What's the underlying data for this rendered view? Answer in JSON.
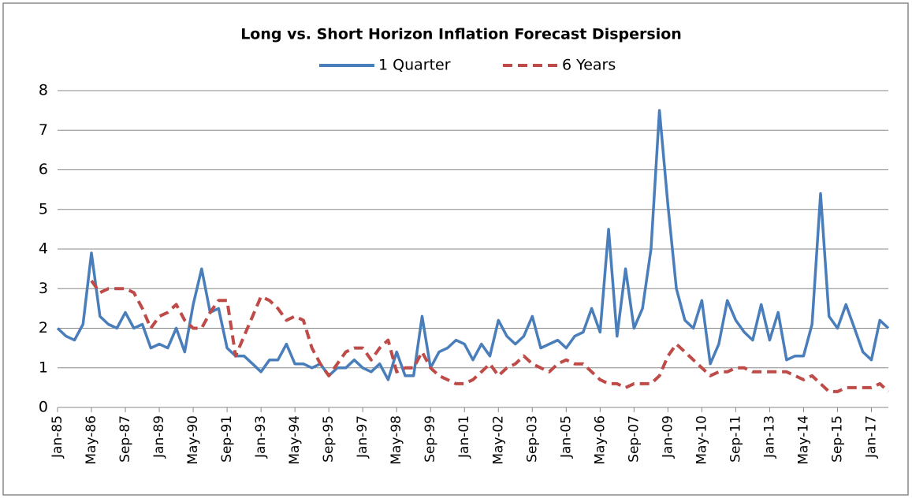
{
  "chart_data": {
    "type": "line",
    "title": "Long vs. Short Horizon Inflation Forecast Dispersion",
    "categories": [
      "Jan-85",
      null,
      null,
      null,
      "May-86",
      null,
      null,
      null,
      "Sep-87",
      null,
      null,
      null,
      "Jan-89",
      null,
      null,
      null,
      "May-90",
      null,
      null,
      null,
      "Sep-91",
      null,
      null,
      null,
      "Jan-93",
      null,
      null,
      null,
      "May-94",
      null,
      null,
      null,
      "Sep-95",
      null,
      null,
      null,
      "Jan-97",
      null,
      null,
      null,
      "May-98",
      null,
      null,
      null,
      "Sep-99",
      null,
      null,
      null,
      "Jan-01",
      null,
      null,
      null,
      "May-02",
      null,
      null,
      null,
      "Sep-03",
      null,
      null,
      null,
      "Jan-05",
      null,
      null,
      null,
      "May-06",
      null,
      null,
      null,
      "Sep-07",
      null,
      null,
      null,
      "Jan-09",
      null,
      null,
      null,
      "May-10",
      null,
      null,
      null,
      "Sep-11",
      null,
      null,
      null,
      "Jan-13",
      null,
      null,
      null,
      "May-14",
      null,
      null,
      null,
      "Sep-15",
      null,
      null,
      null,
      "Jan-17",
      null,
      null
    ],
    "series": [
      {
        "name": "1 Quarter",
        "color": "#4a7ebb",
        "line_style": "solid",
        "values": [
          2.0,
          1.8,
          1.7,
          2.1,
          3.9,
          2.3,
          2.1,
          2.0,
          2.4,
          2.0,
          2.1,
          1.5,
          1.6,
          1.5,
          2.0,
          1.4,
          2.6,
          3.5,
          2.4,
          2.5,
          1.5,
          1.3,
          1.3,
          1.1,
          0.9,
          1.2,
          1.2,
          1.6,
          1.1,
          1.1,
          1.0,
          1.1,
          0.8,
          1.0,
          1.0,
          1.2,
          1.0,
          0.9,
          1.1,
          0.7,
          1.4,
          0.8,
          0.8,
          2.3,
          1.0,
          1.4,
          1.5,
          1.7,
          1.6,
          1.2,
          1.6,
          1.3,
          2.2,
          1.8,
          1.6,
          1.8,
          2.3,
          1.5,
          1.6,
          1.7,
          1.5,
          1.8,
          1.9,
          2.5,
          1.9,
          4.5,
          1.8,
          3.5,
          2.0,
          2.5,
          4.0,
          7.5,
          5.1,
          3.0,
          2.2,
          2.0,
          2.7,
          1.1,
          1.6,
          2.7,
          2.2,
          1.9,
          1.7,
          2.6,
          1.7,
          2.4,
          1.2,
          1.3,
          1.3,
          2.1,
          5.4,
          2.3,
          2.0,
          2.6,
          2.0,
          1.4,
          1.2,
          2.2,
          2.0
        ]
      },
      {
        "name": "6 Years",
        "color": "#be4b48",
        "line_style": "dashed",
        "values": [
          null,
          null,
          null,
          null,
          3.2,
          2.9,
          3.0,
          3.0,
          3.0,
          2.9,
          2.5,
          2.0,
          2.3,
          2.4,
          2.6,
          2.2,
          2.0,
          2.0,
          2.4,
          2.7,
          2.7,
          1.3,
          1.8,
          2.3,
          2.8,
          2.7,
          2.5,
          2.2,
          2.3,
          2.2,
          1.5,
          1.1,
          0.8,
          1.1,
          1.4,
          1.5,
          1.5,
          1.2,
          1.5,
          1.7,
          0.9,
          1.0,
          1.0,
          1.4,
          1.0,
          0.8,
          0.7,
          0.6,
          0.6,
          0.7,
          0.9,
          1.1,
          0.8,
          1.0,
          1.1,
          1.3,
          1.1,
          1.0,
          0.9,
          1.1,
          1.2,
          1.1,
          1.1,
          0.9,
          0.7,
          0.6,
          0.6,
          0.5,
          0.6,
          0.6,
          0.6,
          0.8,
          1.3,
          1.6,
          1.4,
          1.2,
          1.0,
          0.8,
          0.9,
          0.9,
          1.0,
          1.0,
          0.9,
          0.9,
          0.9,
          0.9,
          0.9,
          0.8,
          0.7,
          0.8,
          0.6,
          0.4,
          0.4,
          0.5,
          0.5,
          0.5,
          0.5,
          0.6,
          0.4
        ]
      }
    ],
    "ylim": [
      0,
      8
    ],
    "yticks": [
      0,
      1,
      2,
      3,
      4,
      5,
      6,
      7,
      8
    ],
    "grid": true,
    "legend": "top"
  }
}
